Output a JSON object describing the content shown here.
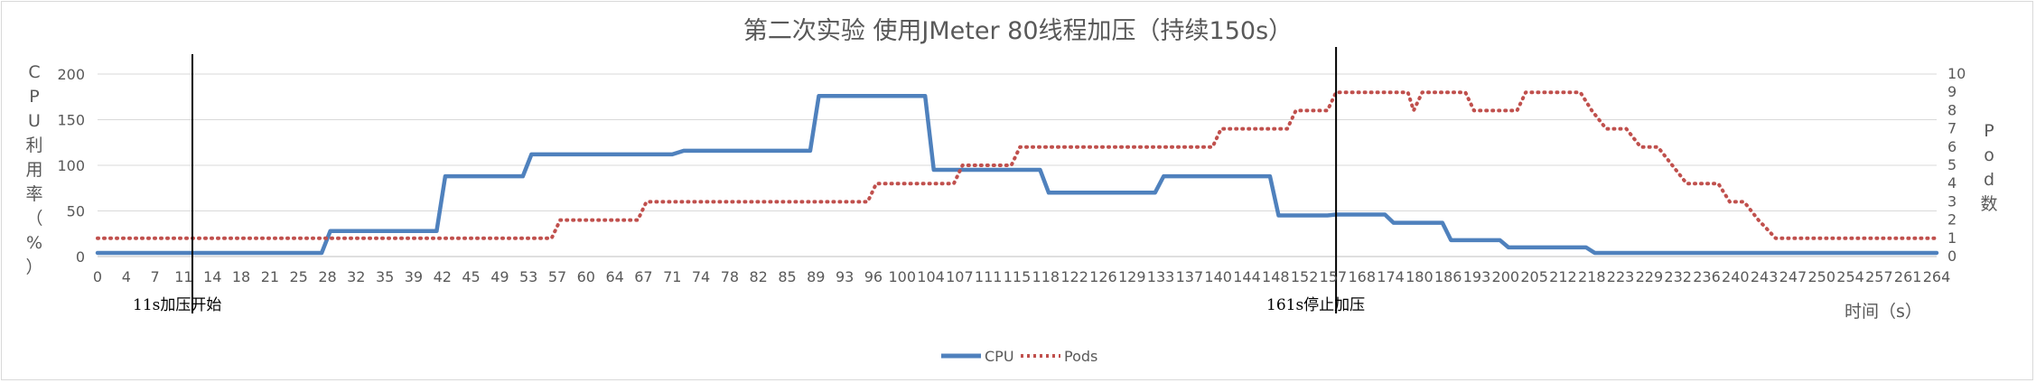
{
  "chart_data": {
    "type": "line",
    "title": "第二次实验 使用JMeter 80线程加压（持续150s）",
    "xlabel": "时间（s）",
    "ylabel": "CPU利用率（%）",
    "y2label": "Pod数",
    "ylim": [
      0,
      200
    ],
    "y2lim": [
      0,
      10
    ],
    "yticks": [
      0,
      50,
      100,
      150,
      200
    ],
    "y2ticks": [
      0,
      1,
      2,
      3,
      4,
      5,
      6,
      7,
      8,
      9,
      10
    ],
    "grid": true,
    "legend": "bottom",
    "x_ticks": [
      "0",
      "4",
      "7",
      "11",
      "14",
      "18",
      "21",
      "25",
      "28",
      "32",
      "35",
      "39",
      "42",
      "45",
      "49",
      "53",
      "57",
      "60",
      "64",
      "67",
      "71",
      "74",
      "78",
      "82",
      "85",
      "89",
      "93",
      "96",
      "100",
      "104",
      "107",
      "111",
      "115",
      "118",
      "122",
      "126",
      "129",
      "133",
      "137",
      "140",
      "144",
      "148",
      "152",
      "157",
      "168",
      "174",
      "180",
      "186",
      "193",
      "200",
      "205",
      "212",
      "218",
      "223",
      "229",
      "232",
      "236",
      "240",
      "243",
      "247",
      "250",
      "254",
      "257",
      "261",
      "264"
    ],
    "series": [
      {
        "name": "CPU",
        "axis": "left",
        "color": "#4F81BD",
        "style": "solid",
        "points": [
          [
            0,
            4
          ],
          [
            1,
            4
          ],
          [
            2,
            4
          ],
          [
            3,
            4
          ],
          [
            4,
            4
          ],
          [
            5,
            4
          ],
          [
            6,
            4
          ],
          [
            7,
            4
          ],
          [
            7.8,
            4
          ],
          [
            8.1,
            28
          ],
          [
            9,
            28
          ],
          [
            10,
            28
          ],
          [
            11,
            28
          ],
          [
            11.8,
            28
          ],
          [
            12.1,
            88
          ],
          [
            13,
            88
          ],
          [
            14,
            88
          ],
          [
            14.8,
            88
          ],
          [
            15.1,
            112
          ],
          [
            16,
            112
          ],
          [
            17,
            112
          ],
          [
            18,
            112
          ],
          [
            19,
            112
          ],
          [
            20,
            112
          ],
          [
            20.4,
            116
          ],
          [
            21,
            116
          ],
          [
            22,
            116
          ],
          [
            23,
            116
          ],
          [
            24,
            116
          ],
          [
            24.8,
            116
          ],
          [
            25.1,
            176
          ],
          [
            26,
            176
          ],
          [
            27,
            176
          ],
          [
            28,
            176
          ],
          [
            28.8,
            176
          ],
          [
            29.1,
            95
          ],
          [
            30,
            95
          ],
          [
            31,
            95
          ],
          [
            32,
            95
          ],
          [
            32.8,
            95
          ],
          [
            33.1,
            70
          ],
          [
            34,
            70
          ],
          [
            35,
            70
          ],
          [
            36,
            70
          ],
          [
            36.8,
            70
          ],
          [
            37.1,
            88
          ],
          [
            38,
            88
          ],
          [
            39,
            88
          ],
          [
            40,
            88
          ],
          [
            40.8,
            88
          ],
          [
            41.1,
            45
          ],
          [
            42,
            45
          ],
          [
            42.8,
            45
          ],
          [
            43.1,
            46
          ],
          [
            44,
            46
          ],
          [
            44.8,
            46
          ],
          [
            45.1,
            37
          ],
          [
            46,
            37
          ],
          [
            46.8,
            37
          ],
          [
            47.1,
            18
          ],
          [
            48,
            18
          ],
          [
            48.8,
            18
          ],
          [
            49.1,
            10
          ],
          [
            50,
            10
          ],
          [
            51,
            10
          ],
          [
            51.8,
            10
          ],
          [
            52.1,
            4
          ],
          [
            53,
            4
          ],
          [
            54,
            4
          ],
          [
            55,
            4
          ],
          [
            56,
            4
          ],
          [
            57,
            4
          ],
          [
            58,
            4
          ],
          [
            59,
            4
          ],
          [
            60,
            4
          ],
          [
            61,
            4
          ],
          [
            62,
            4
          ],
          [
            63,
            4
          ],
          [
            64,
            4
          ]
        ]
      },
      {
        "name": "Pods",
        "axis": "right",
        "color": "#C0504D",
        "style": "dotted",
        "points": [
          [
            0,
            1
          ],
          [
            1,
            1
          ],
          [
            2,
            1
          ],
          [
            3,
            1
          ],
          [
            4,
            1
          ],
          [
            5,
            1
          ],
          [
            6,
            1
          ],
          [
            7,
            1
          ],
          [
            8,
            1
          ],
          [
            9,
            1
          ],
          [
            10,
            1
          ],
          [
            11,
            1
          ],
          [
            12,
            1
          ],
          [
            13,
            1
          ],
          [
            14,
            1
          ],
          [
            15,
            1
          ],
          [
            15.8,
            1
          ],
          [
            16.1,
            2
          ],
          [
            17,
            2
          ],
          [
            18,
            2
          ],
          [
            18.8,
            2
          ],
          [
            19.1,
            3
          ],
          [
            20,
            3
          ],
          [
            21,
            3
          ],
          [
            22,
            3
          ],
          [
            23,
            3
          ],
          [
            24,
            3
          ],
          [
            25,
            3
          ],
          [
            26,
            3
          ],
          [
            26.8,
            3
          ],
          [
            27.1,
            4
          ],
          [
            28,
            4
          ],
          [
            29,
            4
          ],
          [
            29.8,
            4
          ],
          [
            30.1,
            5
          ],
          [
            31,
            5
          ],
          [
            31.8,
            5
          ],
          [
            32.1,
            6
          ],
          [
            33,
            6
          ],
          [
            34,
            6
          ],
          [
            35,
            6
          ],
          [
            36,
            6
          ],
          [
            37,
            6
          ],
          [
            38,
            6
          ],
          [
            38.8,
            6
          ],
          [
            39.1,
            7
          ],
          [
            40,
            7
          ],
          [
            41,
            7
          ],
          [
            41.4,
            7
          ],
          [
            41.7,
            8
          ],
          [
            42,
            8
          ],
          [
            42.8,
            8
          ],
          [
            43.1,
            9
          ],
          [
            44,
            9
          ],
          [
            45,
            9
          ],
          [
            45.6,
            9
          ],
          [
            45.8,
            8
          ],
          [
            46.1,
            9
          ],
          [
            47,
            9
          ],
          [
            47.6,
            9
          ],
          [
            47.9,
            8
          ],
          [
            48.5,
            8
          ],
          [
            49.4,
            8
          ],
          [
            49.7,
            9
          ],
          [
            50,
            9
          ],
          [
            51,
            9
          ],
          [
            51.6,
            9
          ],
          [
            52,
            8
          ],
          [
            52.5,
            7
          ],
          [
            53.2,
            7
          ],
          [
            53.7,
            6
          ],
          [
            54.3,
            6
          ],
          [
            54.8,
            5
          ],
          [
            55.3,
            4
          ],
          [
            56,
            4
          ],
          [
            56.4,
            4
          ],
          [
            56.8,
            3
          ],
          [
            57.3,
            3
          ],
          [
            57.8,
            2
          ],
          [
            58.4,
            1
          ],
          [
            59,
            1
          ],
          [
            60,
            1
          ],
          [
            61,
            1
          ],
          [
            62,
            1
          ],
          [
            63,
            1
          ],
          [
            64,
            1
          ]
        ]
      }
    ],
    "annotations": [
      {
        "label": "11s加压开始",
        "x_index": 3.3
      },
      {
        "label": "161s停止加压",
        "x_index": 43.1
      }
    ]
  }
}
